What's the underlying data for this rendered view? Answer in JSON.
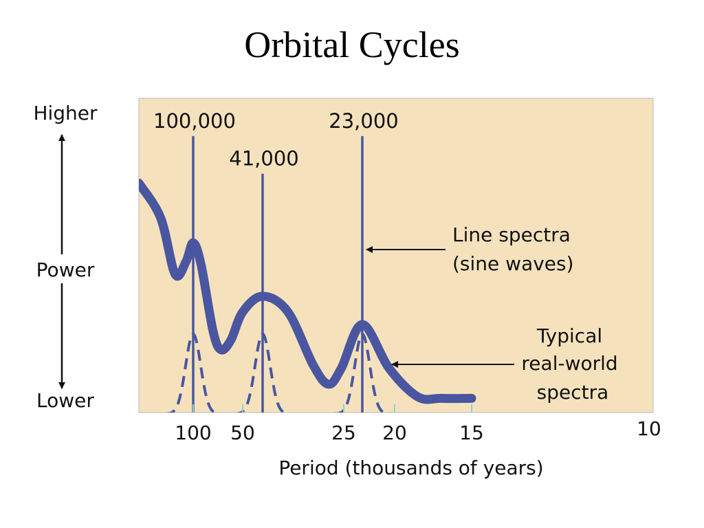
{
  "slide": {
    "title": "Orbital Cycles"
  },
  "colors": {
    "background": "#f5e2bd",
    "line": "#4a56a0",
    "axis_tick": "#8fd2cf",
    "text": "#111111"
  },
  "chart_data": {
    "type": "line",
    "title": "Orbital Cycles",
    "xlabel": "Period (thousands of years)",
    "ylabel": "Power",
    "y_axis_ends": {
      "top": "Higher",
      "bottom": "Lower"
    },
    "x_ticks": [
      {
        "value": 100,
        "label": "100"
      },
      {
        "value": 50,
        "label": "50"
      },
      {
        "value": 25,
        "label": "25"
      },
      {
        "value": 20,
        "label": "20"
      },
      {
        "value": 15,
        "label": "15"
      },
      {
        "value": 10,
        "label": "10"
      }
    ],
    "line_spectra": [
      {
        "period": 100,
        "label": "100,000",
        "height": 0.88
      },
      {
        "period": 41,
        "label": "41,000",
        "height": 0.76
      },
      {
        "period": 23,
        "label": "23,000",
        "height": 0.88
      }
    ],
    "real_world_spectrum": {
      "points": [
        [
          130,
          0.73
        ],
        [
          118,
          0.62
        ],
        [
          110,
          0.44
        ],
        [
          104,
          0.48
        ],
        [
          100,
          0.54
        ],
        [
          92,
          0.47
        ],
        [
          80,
          0.26
        ],
        [
          72,
          0.2
        ],
        [
          62,
          0.23
        ],
        [
          50,
          0.32
        ],
        [
          41,
          0.37
        ],
        [
          36,
          0.32
        ],
        [
          31,
          0.15
        ],
        [
          28,
          0.09
        ],
        [
          25.5,
          0.14
        ],
        [
          23,
          0.28
        ],
        [
          20.5,
          0.14
        ],
        [
          18.5,
          0.05
        ],
        [
          17,
          0.045
        ],
        [
          15,
          0.045
        ]
      ]
    },
    "dashed_spectra": [
      {
        "center": 100,
        "peak": 0.25
      },
      {
        "center": 41,
        "peak": 0.25
      },
      {
        "center": 23,
        "peak": 0.25
      }
    ],
    "annotations": [
      {
        "target": "line_spectra",
        "text_lines": [
          "Line spectra",
          "(sine waves)"
        ]
      },
      {
        "target": "real_world_spectrum",
        "text_lines": [
          "Typical",
          "real-world",
          "spectra"
        ]
      }
    ]
  }
}
